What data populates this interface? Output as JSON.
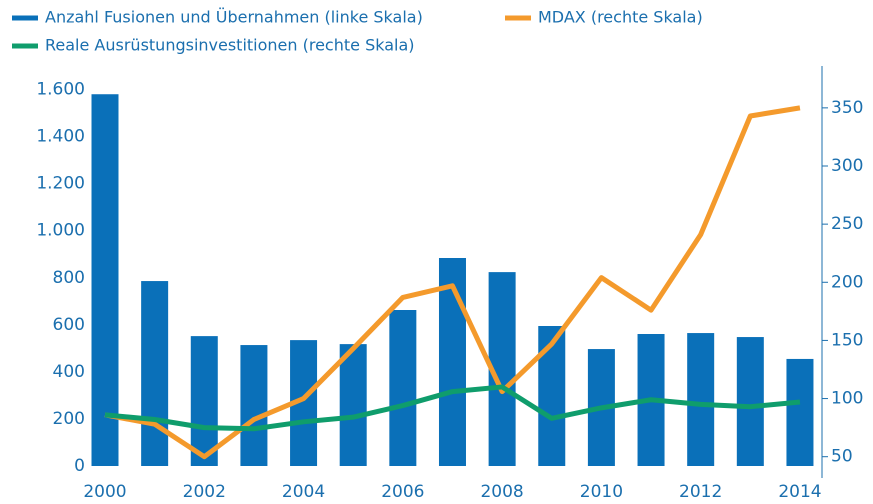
{
  "chart_data": {
    "type": "bar_line",
    "categories": [
      "2000",
      "2001",
      "2002",
      "2003",
      "2004",
      "2005",
      "2006",
      "2007",
      "2008",
      "2009",
      "2010",
      "2011",
      "2012",
      "2013",
      "2014"
    ],
    "xtick_labels_shown": [
      "2000",
      "2002",
      "2004",
      "2006",
      "2008",
      "2010",
      "2012",
      "2014"
    ],
    "series": [
      {
        "name": "Anzahl Fusionen und Übernahmen (linke Skala)",
        "color": "#0a70b9",
        "kind": "bar",
        "axis": "y",
        "values": [
          1580,
          786,
          552,
          514,
          535,
          518,
          663,
          884,
          824,
          595,
          497,
          561,
          565,
          548,
          455
        ]
      },
      {
        "name": "MDAX (rechte Skala)",
        "color": "#f49a2c",
        "kind": "line",
        "axis": "y2",
        "values": [
          86,
          78,
          50,
          82,
          100,
          143,
          187,
          197,
          106,
          147,
          204,
          176,
          241,
          343,
          350
        ]
      },
      {
        "name": "Reale Ausrüstungsinvestitionen (rechte Skala)",
        "color": "#0f9d6c",
        "kind": "line",
        "axis": "y2",
        "values": [
          86,
          82,
          75,
          74,
          80,
          84,
          94,
          106,
          110,
          83,
          92,
          99,
          95,
          93,
          97
        ]
      }
    ],
    "ylim": [
      0,
      1700
    ],
    "yticks": [
      0,
      200,
      400,
      600,
      800,
      {
        "value": 1000,
        "label": "1.000"
      },
      {
        "value": 1200,
        "label": "1.200"
      },
      {
        "value": 1400,
        "label": "1.400"
      },
      {
        "value": 1600,
        "label": "1.600"
      }
    ],
    "y2lim": [
      42,
      386
    ],
    "y2ticks": [
      50,
      100,
      150,
      200,
      250,
      300,
      350
    ]
  }
}
